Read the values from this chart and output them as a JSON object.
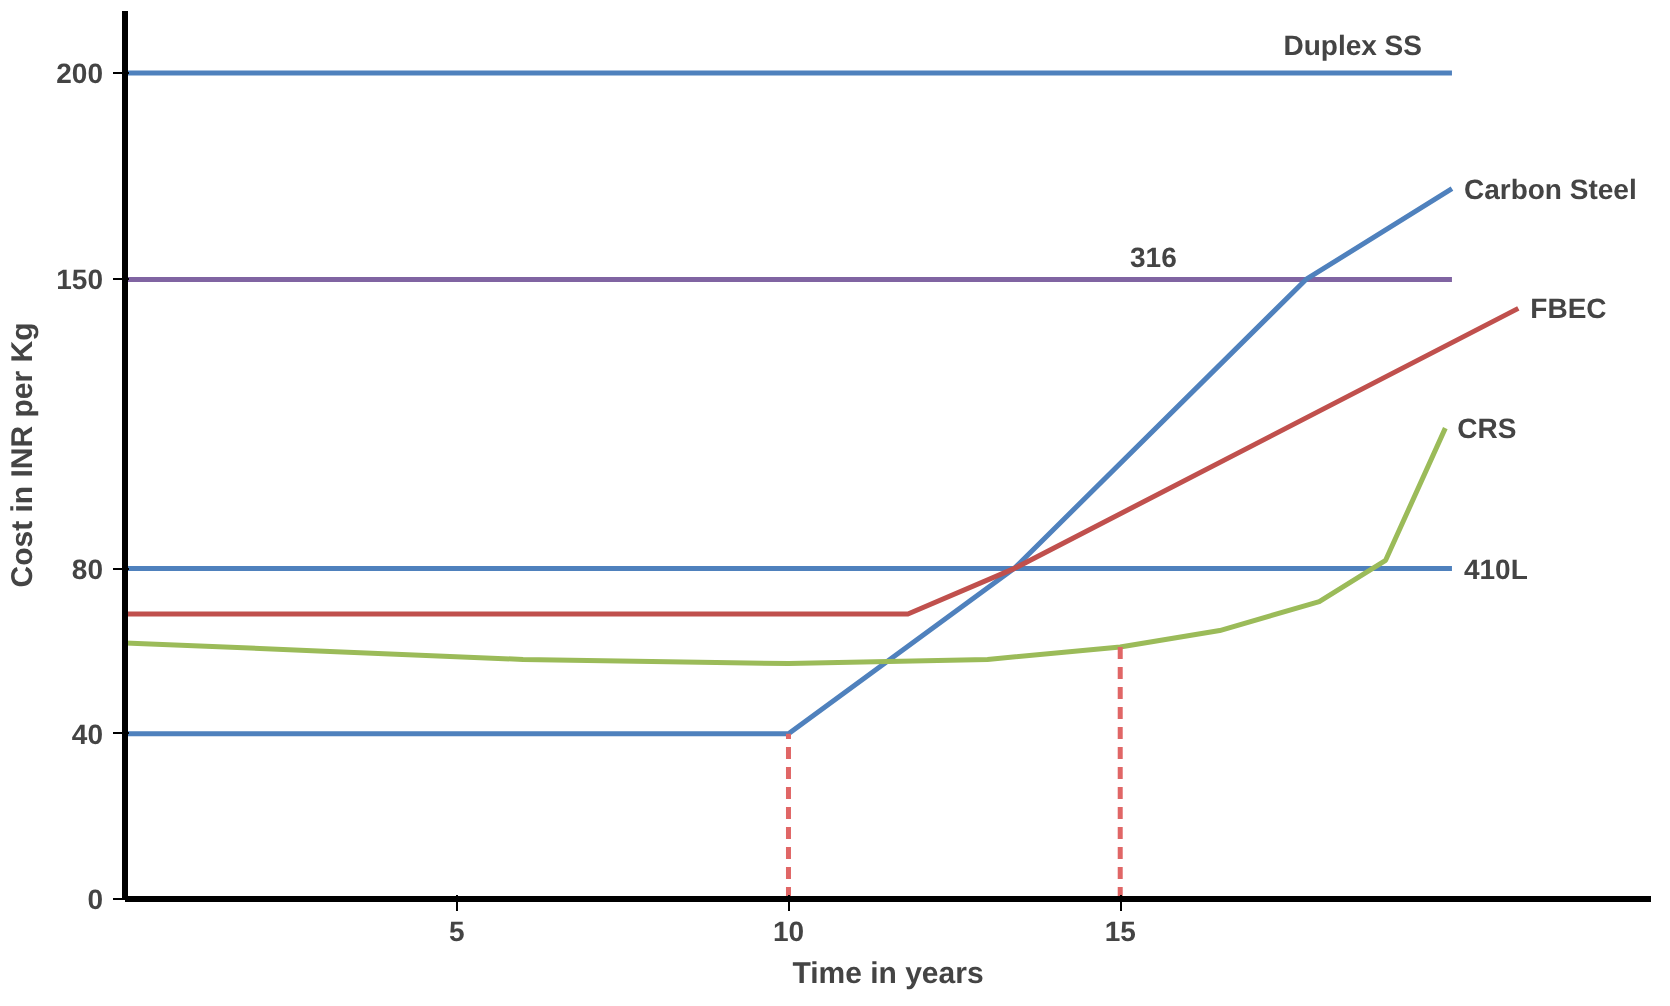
{
  "chart_data": {
    "type": "line",
    "xlabel": "Time in years",
    "ylabel": "Cost in INR per Kg",
    "xlim": [
      0,
      23
    ],
    "ylim": [
      0,
      215
    ],
    "xticks": [
      5,
      10,
      15
    ],
    "yticks": [
      0,
      40,
      80,
      150,
      200
    ],
    "grid": false,
    "marker": "none",
    "series": [
      {
        "name": "Duplex SS",
        "color": "#4f81bd",
        "x": [
          0,
          20
        ],
        "values": [
          200,
          200
        ]
      },
      {
        "color": "#8064a2",
        "x": [
          0,
          20
        ],
        "values": [
          150,
          150
        ]
      },
      {
        "name": "410L",
        "color": "#4f81bd",
        "x": [
          0,
          20
        ],
        "values": [
          80,
          80
        ]
      },
      {
        "name": "Carbon Steel",
        "color": "#4f81bd",
        "x": [
          0,
          10,
          13.4,
          17.8,
          20
        ],
        "values": [
          40,
          40,
          80,
          150,
          172
        ]
      },
      {
        "name": "FBEC",
        "color": "#c0504d",
        "x": [
          0,
          11.8,
          13.4,
          21
        ],
        "values": [
          69,
          69,
          80,
          143
        ]
      },
      {
        "name": "CRS",
        "color": "#9bbb59",
        "x": [
          0,
          3,
          6,
          10,
          13,
          15,
          16.5,
          18,
          19,
          19.9
        ],
        "values": [
          62,
          60,
          58,
          57,
          58,
          61,
          65,
          72,
          82,
          114
        ]
      },
      {
        "color": "#e06666",
        "line_style": "dashed",
        "x": [
          10,
          10
        ],
        "values": [
          0,
          40
        ]
      },
      {
        "color": "#e06666",
        "line_style": "dashed",
        "x": [
          15,
          15
        ],
        "values": [
          0,
          61
        ]
      }
    ],
    "annotations": [
      {
        "text": "316",
        "x": 15.5,
        "y": 150
      }
    ]
  }
}
